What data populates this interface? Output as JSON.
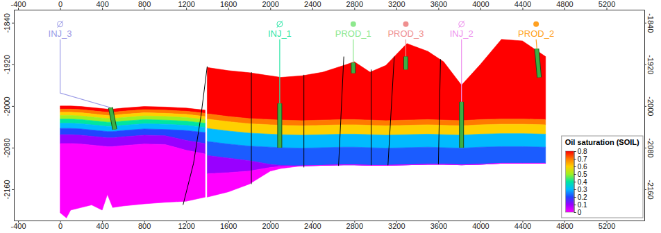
{
  "chart_data": {
    "type": "cross_section",
    "xlim": [
      -440,
      5560
    ],
    "xticks": [
      -400,
      0,
      400,
      800,
      1200,
      1600,
      2000,
      2400,
      2800,
      3200,
      3600,
      4000,
      4400,
      4800,
      5200
    ],
    "ylim": [
      -2220,
      -1815
    ],
    "yticks": [
      -2160,
      -2080,
      -2000,
      -1920,
      -1840
    ],
    "colorbar": {
      "title": "Oil saturation (SOIL)",
      "range": [
        0,
        0.8
      ],
      "ticks": [
        0,
        0.1,
        0.2,
        0.3,
        0.4,
        0.5,
        0.6,
        0.7,
        0.8
      ],
      "colors": [
        "#ff00ff",
        "#9900ff",
        "#2244ff",
        "#00bbff",
        "#00e6a0",
        "#a0f020",
        "#ffd000",
        "#ff7a00",
        "#ff0000"
      ]
    },
    "blocks": [
      {
        "x": [
          0,
          60,
          100,
          200,
          300,
          400,
          450,
          500,
          600,
          800,
          1000,
          1200,
          1380
        ],
        "soil": [
          0.8,
          0.7,
          0.6,
          0.5,
          0.4,
          0.3,
          0.2,
          0.1,
          0
        ],
        "boundaries": [
          [
            -2000,
            -2000,
            -2000,
            -2001,
            -2003,
            -2005,
            -2006,
            -2006,
            -2004,
            -2001,
            -2002,
            -2004,
            -2008
          ],
          [
            -2006,
            -2006,
            -2006,
            -2007,
            -2009,
            -2011,
            -2012,
            -2012,
            -2010,
            -2007,
            -2008,
            -2010,
            -2014
          ],
          [
            -2012,
            -2012,
            -2012,
            -2013,
            -2015,
            -2017,
            -2018,
            -2018,
            -2016,
            -2013,
            -2014,
            -2016,
            -2020
          ],
          [
            -2018,
            -2018,
            -2018,
            -2019,
            -2021,
            -2023,
            -2024,
            -2024,
            -2022,
            -2019,
            -2020,
            -2022,
            -2026
          ],
          [
            -2025,
            -2025,
            -2025,
            -2026,
            -2028,
            -2030,
            -2031,
            -2031,
            -2029,
            -2026,
            -2027,
            -2029,
            -2033
          ],
          [
            -2033,
            -2033,
            -2033,
            -2034,
            -2036,
            -2038,
            -2039,
            -2039,
            -2037,
            -2034,
            -2035,
            -2037,
            -2041
          ],
          [
            -2043,
            -2043,
            -2043,
            -2044,
            -2046,
            -2048,
            -2049,
            -2049,
            -2047,
            -2044,
            -2045,
            -2047,
            -2051
          ],
          [
            -2055,
            -2055,
            -2055,
            -2056,
            -2058,
            -2060,
            -2061,
            -2061,
            -2059,
            -2056,
            -2057,
            -2066,
            -2072
          ],
          [
            -2072,
            -2072,
            -2072,
            -2073,
            -2075,
            -2077,
            -2078,
            -2078,
            -2076,
            -2073,
            -2074,
            -2085,
            -2092
          ],
          [
            -2205,
            -2215,
            -2200,
            -2195,
            -2190,
            -2200,
            -2170,
            -2195,
            -2192,
            -2188,
            -2185,
            -2183,
            -2175
          ]
        ]
      },
      {
        "x": [
          1400,
          1600,
          1800,
          2000,
          2100,
          2300,
          2500,
          2700,
          2800,
          2950,
          3100,
          3300,
          3500,
          3650,
          3820,
          4000,
          4200,
          4400,
          4620
        ],
        "soil": [
          0.8,
          0.7,
          0.6,
          0.3,
          0.22,
          0.1,
          0
        ],
        "boundaries": [
          [
            -1926,
            -1932,
            -1936,
            -1942,
            -1945,
            -1942,
            -1935,
            -1922,
            -1915,
            -1935,
            -1922,
            -1880,
            -1895,
            -1915,
            -1960,
            -1920,
            -1872,
            -1875,
            -1905
          ],
          [
            -2015,
            -2020,
            -2024,
            -2026,
            -2027,
            -2028,
            -2027,
            -2026,
            -2026,
            -2027,
            -2028,
            -2027,
            -2026,
            -2027,
            -2028,
            -2026,
            -2025,
            -2025,
            -2026
          ],
          [
            -2025,
            -2030,
            -2034,
            -2036,
            -2037,
            -2038,
            -2037,
            -2036,
            -2036,
            -2037,
            -2038,
            -2037,
            -2036,
            -2037,
            -2038,
            -2036,
            -2035,
            -2035,
            -2036
          ],
          [
            -2043,
            -2048,
            -2052,
            -2054,
            -2055,
            -2056,
            -2055,
            -2054,
            -2054,
            -2055,
            -2056,
            -2055,
            -2054,
            -2055,
            -2056,
            -2054,
            -2053,
            -2053,
            -2054
          ],
          [
            -2068,
            -2073,
            -2077,
            -2079,
            -2080,
            -2081,
            -2080,
            -2079,
            -2079,
            -2080,
            -2081,
            -2080,
            -2079,
            -2080,
            -2081,
            -2079,
            -2078,
            -2078,
            -2079
          ],
          [
            -2095,
            -2100,
            -2105,
            -2112,
            -2114,
            -2115,
            -2114,
            -2113,
            -2113,
            -2114,
            -2114,
            -2113,
            -2112,
            -2112,
            -2113,
            -2112,
            -2110,
            -2110,
            -2110
          ],
          [
            -2130,
            -2128,
            -2125,
            -2118,
            -2116,
            -2115,
            -2114,
            -2113,
            -2113,
            -2114,
            -2114,
            -2113,
            -2112,
            -2112,
            -2113,
            -2112,
            -2110,
            -2110,
            -2110
          ],
          [
            -2175,
            -2165,
            -2150,
            -2125,
            -2120,
            -2115,
            -2114,
            -2113,
            -2113,
            -2114,
            -2114,
            -2113,
            -2112,
            -2112,
            -2113,
            -2112,
            -2110,
            -2110,
            -2110
          ]
        ]
      }
    ],
    "faults": [
      [
        [
          1400,
          -1924
        ],
        [
          1340,
          -2020
        ],
        [
          1270,
          -2110
        ],
        [
          1170,
          -2190
        ]
      ],
      [
        [
          1820,
          -1935
        ],
        [
          1820,
          -2150
        ]
      ],
      [
        [
          2320,
          -1940
        ],
        [
          2320,
          -2118
        ]
      ],
      [
        [
          2700,
          -1905
        ],
        [
          2650,
          -2115
        ]
      ],
      [
        [
          2960,
          -1930
        ],
        [
          2960,
          -2114
        ]
      ],
      [
        [
          3180,
          -1905
        ],
        [
          3120,
          -2114
        ]
      ],
      [
        [
          3620,
          -1910
        ],
        [
          3600,
          -2112
        ]
      ]
    ],
    "wells": [
      {
        "name": "INJ_3",
        "color": "#9a9ae6",
        "marker": "slashed-circle",
        "path": [
          [
            0,
            -1872
          ],
          [
            0,
            -1975
          ],
          [
            480,
            -2003
          ],
          [
            520,
            -2045
          ]
        ],
        "completion": [
          [
            480,
            -2003
          ],
          [
            520,
            -2045
          ]
        ]
      },
      {
        "name": "INJ_1",
        "color": "#2ee6a8",
        "marker": "slashed-circle",
        "path": [
          [
            2090,
            -1872
          ],
          [
            2090,
            -2080
          ]
        ],
        "completion": [
          [
            2090,
            -1995
          ],
          [
            2090,
            -2080
          ]
        ]
      },
      {
        "name": "PROD_1",
        "color": "#8de88d",
        "marker": "circle",
        "path": [
          [
            2790,
            -1872
          ],
          [
            2790,
            -1937
          ]
        ],
        "completion": [
          [
            2790,
            -1917
          ],
          [
            2790,
            -1937
          ]
        ]
      },
      {
        "name": "PROD_3",
        "color": "#ef8f8f",
        "marker": "circle",
        "path": [
          [
            3290,
            -1872
          ],
          [
            3290,
            -1930
          ]
        ],
        "completion": [
          [
            3290,
            -1905
          ],
          [
            3290,
            -1930
          ]
        ]
      },
      {
        "name": "INJ_2",
        "color": "#ee90ee",
        "marker": "slashed-circle",
        "path": [
          [
            3820,
            -1872
          ],
          [
            3820,
            -2080
          ]
        ],
        "completion": [
          [
            3820,
            -1992
          ],
          [
            3820,
            -2080
          ]
        ]
      },
      {
        "name": "PROD_2",
        "color": "#ffa020",
        "marker": "circle",
        "path": [
          [
            4530,
            -1872
          ],
          [
            4560,
            -1945
          ]
        ],
        "completion": [
          [
            4535,
            -1890
          ],
          [
            4560,
            -1945
          ]
        ]
      }
    ]
  }
}
